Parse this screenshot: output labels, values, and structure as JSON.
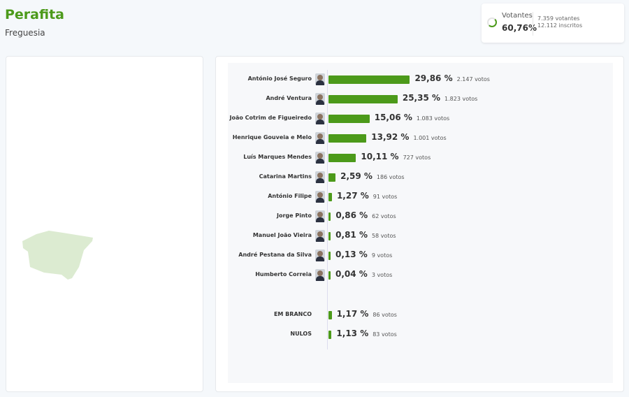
{
  "header": {
    "title": "Perafita",
    "subtitle": "Freguesia"
  },
  "turnout": {
    "label": "Votantes",
    "percent": "60,76%",
    "percent_value": 60.76,
    "voters": "7.359 votantes",
    "registered": "12.112 inscritos"
  },
  "colors": {
    "accent": "#4c9a1a",
    "map_fill": "#dcebd1"
  },
  "results": [
    {
      "name": "António José Seguro",
      "pct": "29,86 %",
      "value": 29.86,
      "votes": "2.147 votos",
      "photo": true
    },
    {
      "name": "André Ventura",
      "pct": "25,35 %",
      "value": 25.35,
      "votes": "1.823 votos",
      "photo": true
    },
    {
      "name": "João Cotrim de Figueiredo",
      "pct": "15,06 %",
      "value": 15.06,
      "votes": "1.083 votos",
      "photo": true
    },
    {
      "name": "Henrique Gouveia e Melo",
      "pct": "13,92 %",
      "value": 13.92,
      "votes": "1.001 votos",
      "photo": true
    },
    {
      "name": "Luís Marques Mendes",
      "pct": "10,11 %",
      "value": 10.11,
      "votes": "727 votos",
      "photo": true
    },
    {
      "name": "Catarina Martins",
      "pct": "2,59 %",
      "value": 2.59,
      "votes": "186 votos",
      "photo": true
    },
    {
      "name": "António Filipe",
      "pct": "1,27 %",
      "value": 1.27,
      "votes": "91 votos",
      "photo": true
    },
    {
      "name": "Jorge Pinto",
      "pct": "0,86 %",
      "value": 0.86,
      "votes": "62 votos",
      "photo": true
    },
    {
      "name": "Manuel João Vieira",
      "pct": "0,81 %",
      "value": 0.81,
      "votes": "58 votos",
      "photo": true
    },
    {
      "name": "André Pestana da Silva",
      "pct": "0,13 %",
      "value": 0.13,
      "votes": "9 votos",
      "photo": true
    },
    {
      "name": "Humberto Correia",
      "pct": "0,04 %",
      "value": 0.04,
      "votes": "3 votos",
      "photo": true
    },
    {
      "name": "EM BRANCO",
      "pct": "1,17 %",
      "value": 1.17,
      "votes": "86 votos",
      "photo": false
    },
    {
      "name": "NULOS",
      "pct": "1,13 %",
      "value": 1.13,
      "votes": "83 votos",
      "photo": false
    }
  ]
}
